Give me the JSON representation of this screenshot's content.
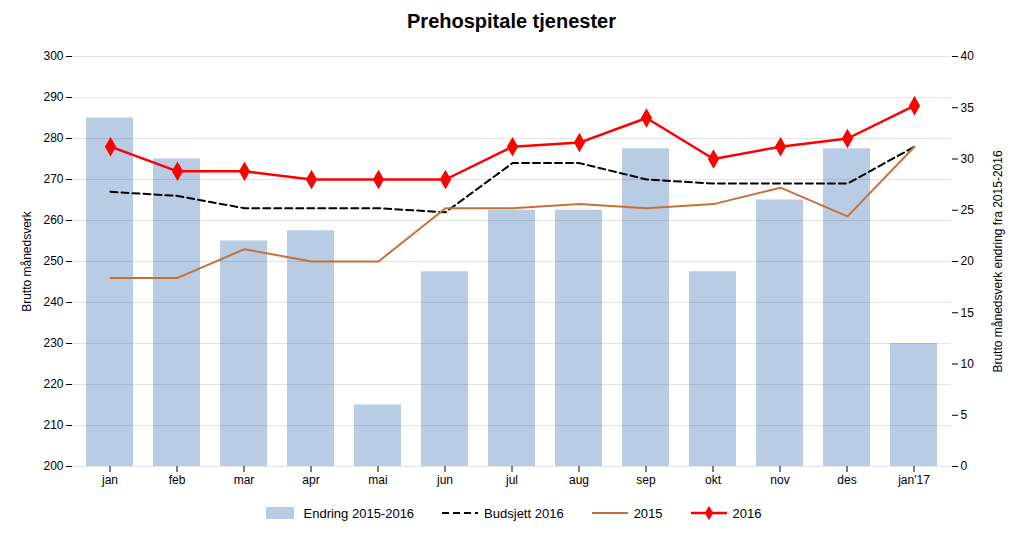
{
  "chart_data": {
    "type": "combo",
    "title": "Prehospitale tjenester",
    "categories": [
      "jan",
      "feb",
      "mar",
      "apr",
      "mai",
      "jun",
      "jul",
      "aug",
      "sep",
      "okt",
      "nov",
      "des",
      "jan'17"
    ],
    "series": [
      {
        "name": "Endring 2015-2016",
        "type": "bar",
        "axis": "y2",
        "color": "#b8cce4",
        "values": [
          34,
          30,
          22,
          23,
          6,
          19,
          25,
          25,
          31,
          19,
          26,
          31,
          12
        ]
      },
      {
        "name": "Budsjett 2016",
        "type": "line",
        "color": "#000000",
        "line_style": "dashed",
        "values": [
          267,
          266,
          263,
          263,
          263,
          262,
          274,
          274,
          270,
          269,
          269,
          269,
          278
        ]
      },
      {
        "name": "2015",
        "type": "line",
        "color": "#c87137",
        "line_style": "solid",
        "values": [
          246,
          246,
          253,
          250,
          250,
          263,
          263,
          264,
          263,
          264,
          268,
          261,
          278
        ]
      },
      {
        "name": "2016",
        "type": "line",
        "color": "#ff0000",
        "line_style": "solid",
        "marker": "diamond",
        "values": [
          278,
          272,
          272,
          270,
          270,
          270,
          278,
          279,
          285,
          275,
          278,
          280,
          288
        ]
      }
    ],
    "ylabel": "Brutto månedsverk",
    "y2label": "Brutto månedsverk endring fra 2015-2016",
    "ylim": [
      200,
      300
    ],
    "yticks": [
      200,
      210,
      220,
      230,
      240,
      250,
      260,
      270,
      280,
      290,
      300
    ],
    "y2lim": [
      0,
      40
    ],
    "y2ticks": [
      0,
      5,
      10,
      15,
      20,
      25,
      30,
      35,
      40
    ],
    "grid": true,
    "legend": "bottom"
  }
}
